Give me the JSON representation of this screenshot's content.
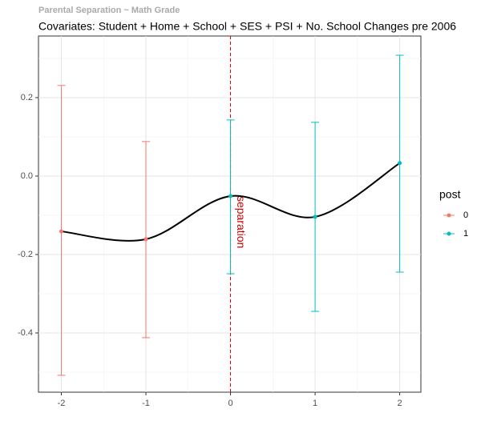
{
  "chart_data": {
    "type": "errorbar",
    "header": "Parental Separation ~ Math Grade",
    "title": "Covariates: Student + Home + School + SES + PSI + No. School Changes pre 2006",
    "legend_title": "post",
    "legend_position": "right",
    "series": [
      {
        "name": "0",
        "color": "#f8766d",
        "x": [
          -2,
          -1
        ],
        "values": [
          -0.141,
          -0.161
        ],
        "lower": [
          -0.508,
          -0.412
        ],
        "upper": [
          0.231,
          0.088
        ]
      },
      {
        "name": "1",
        "color": "#00bfc4",
        "x": [
          0,
          1,
          2
        ],
        "values": [
          -0.051,
          -0.104,
          0.033
        ],
        "lower": [
          -0.249,
          -0.345,
          -0.245
        ],
        "upper": [
          0.143,
          0.137,
          0.308
        ]
      }
    ],
    "smooth_color": "#000000",
    "vline": 0,
    "vline_color": "#cc0000",
    "vline_label": "separation",
    "xlim": [
      -2.27,
      2.25
    ],
    "xticks": [
      -2,
      -1,
      0,
      1,
      2
    ],
    "x_minor_ticks": [
      -1.5,
      -0.5,
      0.5,
      1.5
    ],
    "ylim": [
      -0.551,
      0.357
    ],
    "yticks": [
      {
        "value": -0.4,
        "label": "-0.4"
      },
      {
        "value": -0.2,
        "label": "-0.2"
      },
      {
        "value": 0,
        "label": "0.0"
      },
      {
        "value": 0.2,
        "label": "0.2"
      }
    ],
    "y_minor_ticks": [
      -0.5,
      -0.3,
      -0.1,
      0.1,
      0.3
    ],
    "grid": true
  }
}
